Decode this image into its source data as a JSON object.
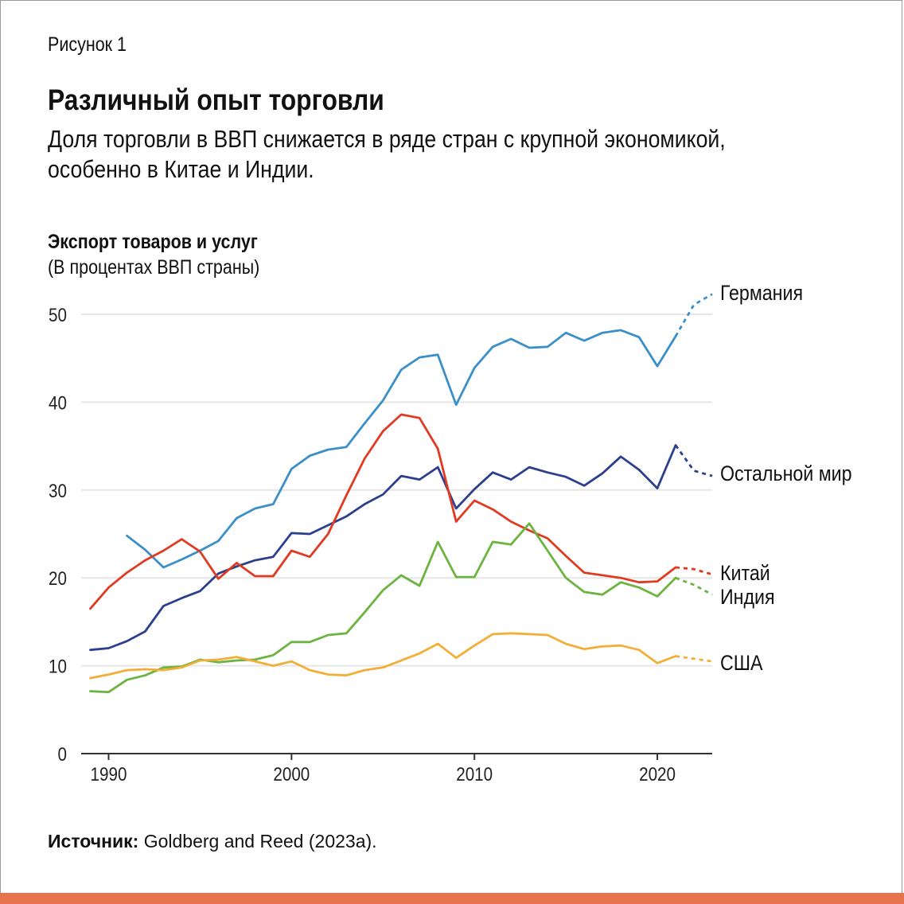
{
  "figure_label": "Рисунок 1",
  "title": "Различный опыт торговли",
  "subtitle_line1": "Доля торговли в ВВП снижается в ряде стран с крупной экономикой,",
  "subtitle_line2": "особенно в Китае и Индии.",
  "source_label": "Источник:",
  "source_text": " Goldberg and Reed (2023a).",
  "colors": {
    "accent_bar": "#e8744f",
    "germany": "#3a8fc8",
    "rest_of_world": "#2b3f8c",
    "china": "#e03a22",
    "india": "#6cb33f",
    "usa": "#f2ae37",
    "grid": "#e6e6e6",
    "axis": "#333333"
  },
  "chart_data": {
    "type": "line",
    "ylabel": "Экспорт товаров и услуг",
    "ylabel_unit": "(В процентах ВВП страны)",
    "xlim": [
      1988.5,
      2023
    ],
    "ylim": [
      0,
      50
    ],
    "yticks": [
      0,
      10,
      20,
      30,
      40,
      50
    ],
    "xticks": [
      1990,
      2000,
      2010,
      2020
    ],
    "grid": "horizontal",
    "legend": "direct labels at right end of lines",
    "series": [
      {
        "name": "Германия",
        "color_key": "germany",
        "x": [
          1991,
          1992,
          1993,
          1994,
          1995,
          1996,
          1997,
          1998,
          1999,
          2000,
          2001,
          2002,
          2003,
          2004,
          2005,
          2006,
          2007,
          2008,
          2009,
          2010,
          2011,
          2012,
          2013,
          2014,
          2015,
          2016,
          2017,
          2018,
          2019,
          2020,
          2021
        ],
        "y": [
          24.8,
          23.2,
          21.2,
          22.1,
          23.1,
          24.2,
          26.8,
          27.9,
          28.4,
          32.4,
          33.9,
          34.6,
          34.9,
          37.6,
          40.2,
          43.7,
          45.1,
          45.4,
          39.7,
          43.9,
          46.3,
          47.2,
          46.2,
          46.3,
          47.9,
          47.0,
          47.9,
          48.2,
          47.4,
          44.1,
          47.5
        ],
        "projection_x": [
          2021,
          2022,
          2023
        ],
        "projection_y": [
          47.5,
          51.1,
          52.3
        ]
      },
      {
        "name": "Остальной мир",
        "color_key": "rest_of_world",
        "x": [
          1989,
          1990,
          1991,
          1992,
          1993,
          1994,
          1995,
          1996,
          1997,
          1998,
          1999,
          2000,
          2001,
          2002,
          2003,
          2004,
          2005,
          2006,
          2007,
          2008,
          2009,
          2010,
          2011,
          2012,
          2013,
          2014,
          2015,
          2016,
          2017,
          2018,
          2019,
          2020,
          2021
        ],
        "y": [
          11.8,
          12.0,
          12.8,
          13.9,
          16.8,
          17.7,
          18.5,
          20.5,
          21.3,
          22.0,
          22.4,
          25.1,
          25.0,
          26.0,
          27.0,
          28.4,
          29.5,
          31.6,
          31.2,
          32.6,
          27.9,
          30.1,
          32.0,
          31.2,
          32.6,
          32.0,
          31.5,
          30.5,
          31.9,
          33.8,
          32.3,
          30.2,
          35.1
        ],
        "projection_x": [
          2021,
          2022,
          2023
        ],
        "projection_y": [
          35.1,
          32.2,
          31.6
        ]
      },
      {
        "name": "Китай",
        "color_key": "china",
        "x": [
          1989,
          1990,
          1991,
          1992,
          1993,
          1994,
          1995,
          1996,
          1997,
          1998,
          1999,
          2000,
          2001,
          2002,
          2003,
          2004,
          2005,
          2006,
          2007,
          2008,
          2009,
          2010,
          2011,
          2012,
          2013,
          2014,
          2015,
          2016,
          2017,
          2018,
          2019,
          2020,
          2021
        ],
        "y": [
          16.5,
          18.9,
          20.6,
          22.0,
          23.1,
          24.4,
          23.0,
          19.9,
          21.7,
          20.2,
          20.2,
          23.1,
          22.4,
          25.0,
          29.4,
          33.6,
          36.7,
          38.6,
          38.2,
          34.7,
          26.4,
          28.8,
          27.8,
          26.4,
          25.4,
          24.5,
          22.5,
          20.6,
          20.3,
          20.0,
          19.5,
          19.6,
          21.2
        ],
        "projection_x": [
          2021,
          2022,
          2023
        ],
        "projection_y": [
          21.2,
          21.0,
          20.4
        ]
      },
      {
        "name": "Индия",
        "color_key": "india",
        "x": [
          1989,
          1990,
          1991,
          1992,
          1993,
          1994,
          1995,
          1996,
          1997,
          1998,
          1999,
          2000,
          2001,
          2002,
          2003,
          2004,
          2005,
          2006,
          2007,
          2008,
          2009,
          2010,
          2011,
          2012,
          2013,
          2014,
          2015,
          2016,
          2017,
          2018,
          2019,
          2020,
          2021
        ],
        "y": [
          7.1,
          7.0,
          8.4,
          8.9,
          9.8,
          9.9,
          10.7,
          10.4,
          10.6,
          10.7,
          11.2,
          12.7,
          12.7,
          13.5,
          13.7,
          16.1,
          18.6,
          20.3,
          19.1,
          24.1,
          20.1,
          20.1,
          24.1,
          23.8,
          26.2,
          23.1,
          20.0,
          18.4,
          18.1,
          19.5,
          18.9,
          17.9,
          20.0
        ],
        "projection_x": [
          2021,
          2022,
          2023
        ],
        "projection_y": [
          20.0,
          19.2,
          18.1
        ]
      },
      {
        "name": "США",
        "color_key": "usa",
        "x": [
          1989,
          1990,
          1991,
          1992,
          1993,
          1994,
          1995,
          1996,
          1997,
          1998,
          1999,
          2000,
          2001,
          2002,
          2003,
          2004,
          2005,
          2006,
          2007,
          2008,
          2009,
          2010,
          2011,
          2012,
          2013,
          2014,
          2015,
          2016,
          2017,
          2018,
          2019,
          2020,
          2021
        ],
        "y": [
          8.6,
          9.0,
          9.5,
          9.6,
          9.5,
          9.8,
          10.6,
          10.7,
          11.0,
          10.5,
          10.0,
          10.5,
          9.5,
          9.0,
          8.9,
          9.5,
          9.8,
          10.6,
          11.4,
          12.5,
          10.9,
          12.3,
          13.6,
          13.7,
          13.6,
          13.5,
          12.5,
          11.9,
          12.2,
          12.3,
          11.8,
          10.3,
          11.1
        ],
        "projection_x": [
          2021,
          2022,
          2023
        ],
        "projection_y": [
          11.1,
          10.8,
          10.5
        ]
      }
    ]
  }
}
